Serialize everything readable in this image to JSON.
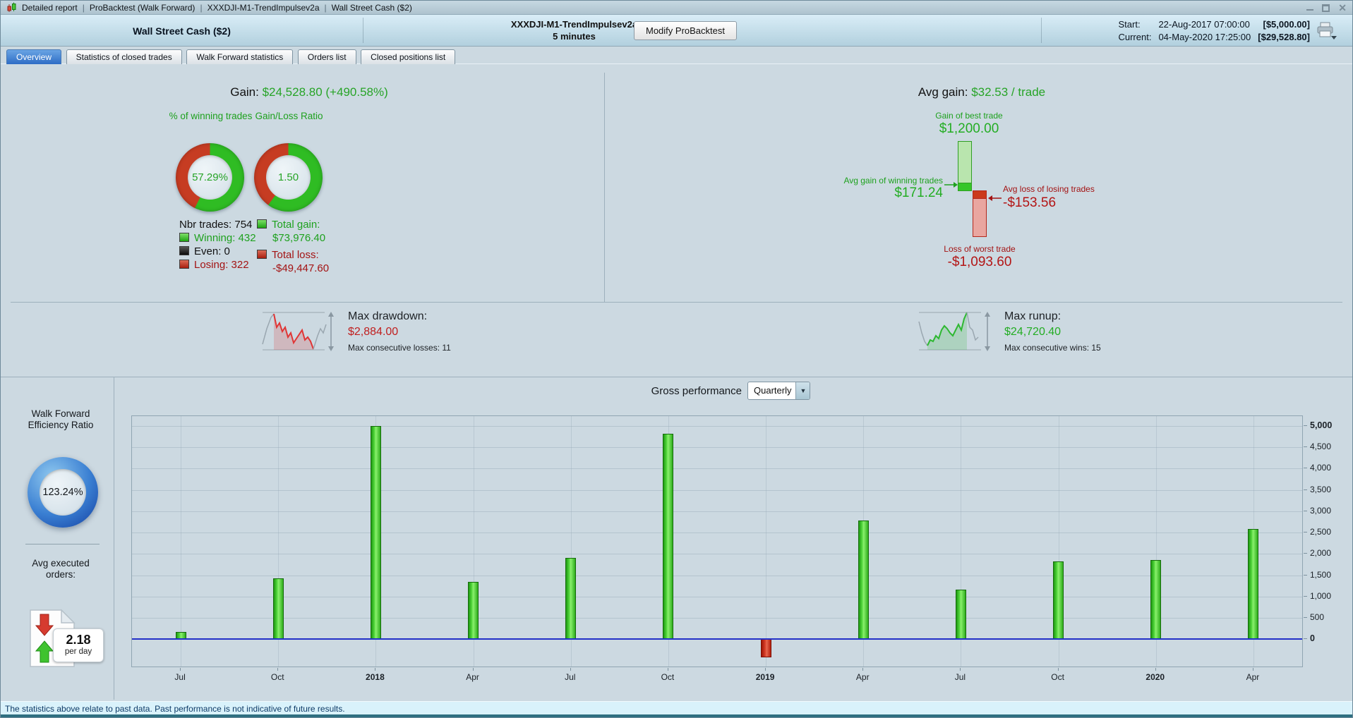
{
  "title_bar": {
    "items": [
      "Detailed report",
      "ProBacktest (Walk Forward)",
      "XXXDJI-M1-TrendImpulsev2a",
      "Wall Street Cash ($2)"
    ]
  },
  "icons": {
    "close": "✕",
    "dropdown_arrow": "▼"
  },
  "header": {
    "instrument": "Wall Street Cash ($2)",
    "system_name": "XXXDJI-M1-TrendImpulsev2a",
    "timeframe": "5 minutes",
    "modify_button": "Modify ProBacktest",
    "start_label": "Start:",
    "start_datetime": "22-Aug-2017 07:00:00",
    "start_value": "[$5,000.00]",
    "current_label": "Current:",
    "current_datetime": "04-May-2020 17:25:00",
    "current_value": "[$29,528.80]"
  },
  "tabs": [
    {
      "label": "Overview",
      "active": true
    },
    {
      "label": "Statistics of closed trades",
      "active": false
    },
    {
      "label": "Walk Forward statistics",
      "active": false
    },
    {
      "label": "Orders list",
      "active": false
    },
    {
      "label": "Closed positions list",
      "active": false
    }
  ],
  "colors": {
    "donut_green": "#2fbc23",
    "donut_red": "#c63c22",
    "positive_text": "#23ad23",
    "negative_text": "#b31515",
    "accent_blue": "#2d6cc5"
  },
  "overview": {
    "gain_label": "Gain:",
    "gain_value": "$24,528.80 (+490.58%)",
    "winning_donut": {
      "title": "% of winning trades",
      "value": "57.29%",
      "pct": 57.29
    },
    "ratio_donut": {
      "title": "Gain/Loss Ratio",
      "value": "1.50",
      "pct": 60
    },
    "legend": {
      "nbr_trades": "Nbr trades: 754",
      "winning": "Winning: 432",
      "even": "Even: 0",
      "losing": "Losing: 322",
      "total_gain_label": "Total gain:",
      "total_gain_value": "$73,976.40",
      "total_loss_label": "Total loss:",
      "total_loss_value": "-$49,447.60"
    },
    "avg_gain": {
      "label": "Avg gain:",
      "value": "$32.53 / trade",
      "best_trade_label": "Gain of best trade",
      "best_trade_value": "$1,200.00",
      "avg_win_label": "Avg gain of winning trades",
      "avg_win_value": "$171.24",
      "avg_loss_label": "Avg loss of losing trades",
      "avg_loss_value": "-$153.56",
      "worst_trade_label": "Loss of worst trade",
      "worst_trade_value": "-$1,093.60"
    },
    "drawdown": {
      "label": "Max drawdown:",
      "value": "$2,884.00",
      "sub": "Max consecutive losses: 11"
    },
    "runup": {
      "label": "Max runup:",
      "value": "$24,720.40",
      "sub": "Max consecutive wins: 15"
    }
  },
  "sidebar": {
    "wfer_title": "Walk Forward Efficiency Ratio",
    "wfer_value": "123.24%",
    "avg_orders_title": "Avg executed orders:",
    "avg_orders_value": "2.18",
    "avg_orders_unit": "per day"
  },
  "chart": {
    "title": "Gross performance",
    "period_selector": "Quarterly"
  },
  "chart_data": {
    "type": "bar",
    "title": "Gross performance",
    "period": "Quarterly",
    "categories": [
      "Jul",
      "Oct",
      "2018",
      "Apr",
      "Jul",
      "Oct",
      "2019",
      "Apr",
      "Jul",
      "Oct",
      "2020",
      "Apr"
    ],
    "bold_categories": [
      2,
      6,
      10
    ],
    "values": [
      170,
      1430,
      5000,
      1350,
      1910,
      4820,
      -420,
      2780,
      1170,
      1830,
      1860,
      2580
    ],
    "y_ticks": [
      5000,
      4500,
      4000,
      3500,
      3000,
      2500,
      2000,
      1500,
      1000,
      500,
      0
    ],
    "bold_y_ticks": [
      5000,
      0
    ],
    "ylim": [
      -640,
      5230
    ],
    "grid": true,
    "y_axis_position": "right",
    "positive_color": "#2fae1c",
    "negative_color": "#b31f0c",
    "zero_line_color": "#2330c8"
  },
  "status_bar": "The statistics above relate to past data. Past performance is not indicative of future results."
}
